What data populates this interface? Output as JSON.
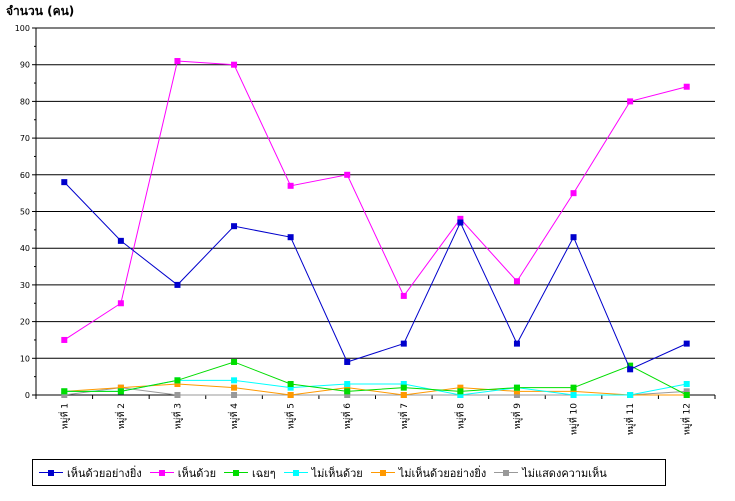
{
  "chart_data": {
    "type": "line",
    "ylabel": "จำนวน (คน)",
    "xlabel": "",
    "ylim": [
      0,
      100
    ],
    "yticks": [
      0,
      10,
      20,
      30,
      40,
      50,
      60,
      70,
      80,
      90,
      100
    ],
    "grid": "horizontal",
    "legend_position": "bottom",
    "categories": [
      "หมู่ที่ 1",
      "หมู่ที่ 2",
      "หมู่ที่ 3",
      "หมู่ที่ 4",
      "หมู่ที่ 5",
      "หมู่ที่ 6",
      "หมู่ที่ 7",
      "หมู่ที่ 8",
      "หมู่ที่ 9",
      "หมู่ที่ 10",
      "หมู่ที่ 11",
      "หมู่ที่ 12"
    ],
    "series": [
      {
        "name": "เห็นด้วยอย่างยิ่ง",
        "color": "#0000cc",
        "values": [
          58,
          42,
          30,
          46,
          43,
          9,
          14,
          47,
          14,
          43,
          7,
          14
        ]
      },
      {
        "name": "เห็นด้วย",
        "color": "#ff00ff",
        "values": [
          15,
          25,
          91,
          90,
          57,
          60,
          27,
          48,
          31,
          55,
          80,
          84
        ]
      },
      {
        "name": "เฉยๆ",
        "color": "#00dd00",
        "values": [
          1,
          1,
          4,
          9,
          3,
          1,
          2,
          1,
          2,
          2,
          8,
          0
        ]
      },
      {
        "name": "ไม่เห็นด้วย",
        "color": "#00ffff",
        "values": [
          1,
          1,
          4,
          4,
          2,
          3,
          3,
          0,
          2,
          0,
          0,
          3
        ]
      },
      {
        "name": "ไม่เห็นด้วยอย่างยิ่ง",
        "color": "#ff9900",
        "values": [
          1,
          2,
          3,
          2,
          0,
          2,
          0,
          2,
          1,
          1,
          0,
          0
        ]
      },
      {
        "name": "ไม่แสดงความเห็น",
        "color": "#999999",
        "values": [
          0,
          2,
          0,
          0,
          0,
          0,
          0,
          0,
          0,
          0,
          0,
          1
        ]
      }
    ]
  }
}
